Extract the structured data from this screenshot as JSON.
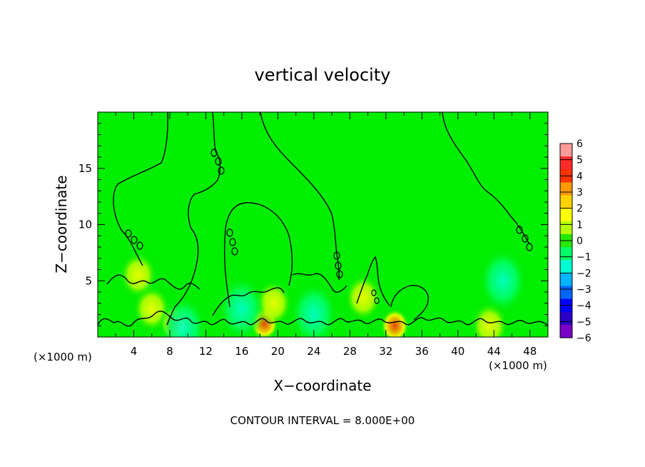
{
  "chart_data": {
    "type": "heatmap",
    "title": "vertical velocity",
    "xlabel": "X−coordinate",
    "ylabel": "Z−coordinate",
    "x_unit_label": "(×1000 m)",
    "y_unit_label": "(×1000 m)",
    "footer": "CONTOUR INTERVAL = 8.000E+00",
    "xlim": [
      0,
      50
    ],
    "ylim": [
      0,
      20
    ],
    "x_ticks": [
      4,
      8,
      12,
      16,
      20,
      24,
      28,
      32,
      36,
      40,
      44,
      48
    ],
    "y_ticks": [
      5,
      10,
      15
    ],
    "colorbar": {
      "ticks": [
        "6",
        "5",
        "4",
        "3",
        "2",
        "1",
        "0",
        "−1",
        "−2",
        "−3",
        "−4",
        "−5",
        "−6"
      ],
      "colors": [
        "#ff9a9a",
        "#ff2a2a",
        "#ff3300",
        "#ff9900",
        "#ffd200",
        "#ffff00",
        "#b4ff00",
        "#26e800",
        "#00ff66",
        "#00ffd2",
        "#00b4ff",
        "#0066ff",
        "#0000ff",
        "#2a00c8",
        "#7a00c8"
      ],
      "range": [
        -6,
        6
      ]
    },
    "background_color": "#00ee00",
    "contour_color": "#000000",
    "features": [
      {
        "x": 4.5,
        "z": 5.5,
        "value": 1.0
      },
      {
        "x": 6.0,
        "z": 2.5,
        "value": 2.0
      },
      {
        "x": 8.5,
        "z": 1.2,
        "value": 3.5
      },
      {
        "x": 18.5,
        "z": 1.2,
        "value": 3.5
      },
      {
        "x": 19.5,
        "z": 3.0,
        "value": 1.5
      },
      {
        "x": 29.5,
        "z": 3.5,
        "value": 2.0
      },
      {
        "x": 33.0,
        "z": 1.0,
        "value": 4.0
      },
      {
        "x": 9.5,
        "z": 0.8,
        "value": -2.0
      },
      {
        "x": 24.0,
        "z": 2.0,
        "value": -1.5
      },
      {
        "x": 45.0,
        "z": 5.0,
        "value": -1.5
      },
      {
        "x": 16.0,
        "z": 2.5,
        "value": -1.0
      },
      {
        "x": 43.5,
        "z": 1.0,
        "value": 1.5
      }
    ]
  }
}
